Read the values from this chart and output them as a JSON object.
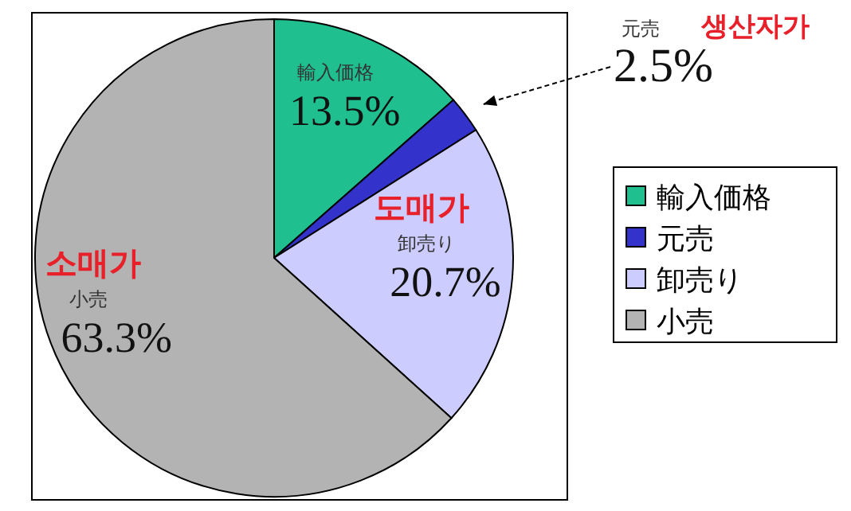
{
  "chart_data": {
    "type": "pie",
    "categories": [
      "輸入価格",
      "元売",
      "卸売り",
      "小売"
    ],
    "values": [
      13.5,
      2.5,
      20.7,
      63.3
    ],
    "value_labels": [
      "13.5%",
      "2.5%",
      "20.7%",
      "63.3%"
    ],
    "colors": [
      "#1fbf8f",
      "#3333cc",
      "#ccccff",
      "#b3b3b3"
    ],
    "annotations": [
      "생산자가",
      "도매가",
      "소매가"
    ],
    "legend": "right"
  }
}
